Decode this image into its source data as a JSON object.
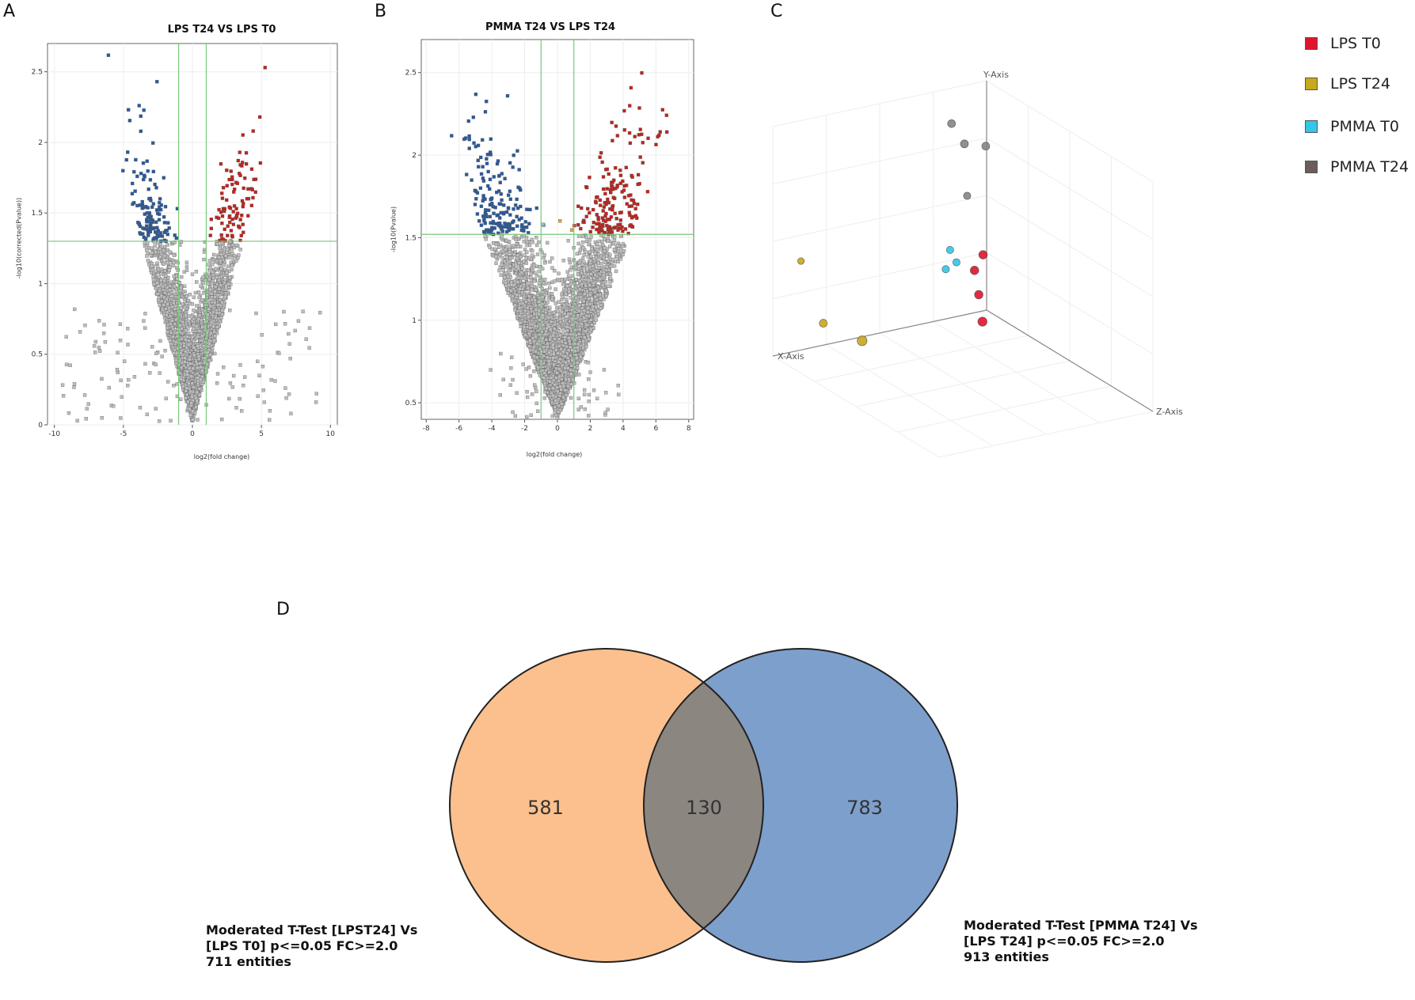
{
  "panels": {
    "a": "A",
    "b": "B",
    "c": "C",
    "d": "D"
  },
  "colors": {
    "down": "#2a5a9c",
    "down_light": "#8bbbd6",
    "up": "#c0241e",
    "up_light": "#e2a040",
    "ns": "#bdbdbd",
    "threshold": "#7ac77a",
    "venn_left": "#fbc08d",
    "venn_right": "#7d9fcc",
    "venn_overlap": "#8c8680"
  },
  "chart_data": [
    {
      "type": "scatter",
      "id": "A",
      "title": "LPS T24  VS LPS T0",
      "xlabel": "log2(fold change)",
      "ylabel": "-log10(corrected(Pvalue))",
      "xlim": [
        -10.5,
        10.5
      ],
      "ylim": [
        0,
        2.7
      ],
      "xticks": [
        -10,
        -5,
        0,
        5,
        10
      ],
      "yticks": [
        0,
        0.5,
        1,
        1.5,
        2,
        2.5
      ],
      "thresholds": {
        "fc": [
          -1,
          1
        ],
        "p": 1.3
      },
      "seed": 7,
      "n_points": 2600
    },
    {
      "type": "scatter",
      "id": "B",
      "title": "PMMA T24 VS LPS T24",
      "xlabel": "log2(fold change)",
      "ylabel": "-log10(Pvalue)",
      "xlim": [
        -8.3,
        8.3
      ],
      "ylim": [
        0.4,
        2.7
      ],
      "xticks": [
        -8,
        -6,
        -4,
        -2,
        0,
        2,
        4,
        6,
        8
      ],
      "yticks": [
        0.5,
        1,
        1.5,
        2,
        2.5
      ],
      "thresholds": {
        "fc": [
          -1,
          1
        ],
        "p": 1.52
      },
      "seed": 11,
      "n_points": 3600
    },
    {
      "type": "scatter3d",
      "id": "C",
      "axes": {
        "x": "X-Axis",
        "y": "Y-Axis",
        "z": "Z-Axis"
      },
      "legend": [
        {
          "label": "LPS T0",
          "color": "#e0142c"
        },
        {
          "label": "LPS T24",
          "color": "#c8a81c"
        },
        {
          "label": "PMMA T0",
          "color": "#33c6e8"
        },
        {
          "label": "PMMA T24",
          "color": "#6b5d5d"
        }
      ],
      "groups": [
        {
          "group": "LPS T0",
          "points": [
            [
              0.82,
              0.37,
              0.6
            ],
            [
              0.78,
              0.31,
              0.6
            ],
            [
              0.8,
              0.2,
              0.6
            ],
            [
              0.79,
              0.1,
              0.7
            ]
          ]
        },
        {
          "group": "LPS T24",
          "points": [
            [
              0.05,
              0.45,
              0.3
            ],
            [
              0.1,
              0.2,
              0.5
            ],
            [
              0.2,
              0.15,
              0.8
            ]
          ]
        },
        {
          "group": "PMMA T0",
          "points": [
            [
              0.72,
              0.38,
              0.4
            ],
            [
              0.7,
              0.3,
              0.4
            ],
            [
              0.75,
              0.32,
              0.4
            ]
          ]
        },
        {
          "group": "PMMA T24",
          "points": [
            [
              0.7,
              0.95,
              0.5
            ],
            [
              0.76,
              0.85,
              0.5
            ],
            [
              0.86,
              0.82,
              0.5
            ],
            [
              0.8,
              0.6,
              0.4
            ]
          ]
        }
      ]
    },
    {
      "type": "venn",
      "id": "D",
      "sets": [
        {
          "name": "left",
          "only": 581,
          "total": 711,
          "caption": [
            "Moderated T-Test [LPST24] Vs",
            "[LPS T0] p<=0.05 FC>=2.0",
            "711 entities"
          ]
        },
        {
          "name": "right",
          "only": 783,
          "total": 913,
          "caption": [
            "Moderated T-Test [PMMA T24] Vs",
            "[LPS T24] p<=0.05 FC>=2.0",
            "913 entities"
          ]
        }
      ],
      "overlap": 130
    }
  ]
}
